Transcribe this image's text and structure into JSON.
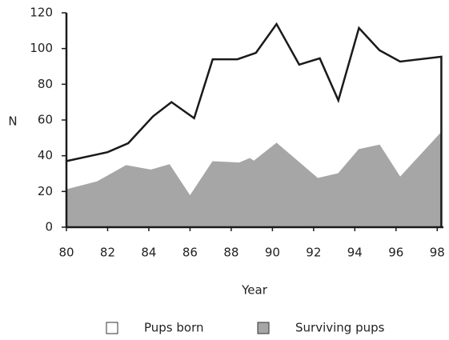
{
  "chart_data": {
    "type": "area",
    "y_label": "N",
    "x_label": "Year",
    "xlim": [
      80,
      98.3
    ],
    "ylim": [
      0,
      120
    ],
    "xticks": [
      80,
      82,
      84,
      86,
      88,
      90,
      92,
      94,
      96,
      98
    ],
    "yticks": [
      0,
      20,
      40,
      60,
      80,
      100,
      120
    ],
    "series": [
      {
        "name": "Pups born",
        "color": "#ffffff",
        "line_color": "#1a1a1a",
        "x": [
          80,
          82,
          83,
          84.2,
          85.1,
          86.2,
          87.1,
          88.3,
          89.2,
          90.2,
          91.3,
          92.3,
          93.2,
          94.2,
          95.2,
          96.2,
          98.2,
          98.2
        ],
        "values": [
          37,
          42,
          47,
          62,
          70,
          61,
          94,
          94,
          97.6,
          113.7,
          91,
          94.5,
          71,
          111.5,
          99,
          92.7,
          95.4,
          0
        ]
      },
      {
        "name": "Surviving pups",
        "color": "#a6a6a6",
        "x": [
          80,
          81.5,
          82.9,
          84.1,
          85,
          86,
          87.1,
          88.4,
          88.9,
          89.1,
          90.2,
          92.2,
          93.2,
          94.2,
          95.2,
          96.2,
          98.2
        ],
        "values": [
          21,
          25.5,
          34.5,
          32,
          35,
          17.5,
          36.7,
          36,
          38.5,
          37,
          47,
          27.3,
          30,
          43.5,
          46,
          28,
          53
        ]
      }
    ]
  }
}
